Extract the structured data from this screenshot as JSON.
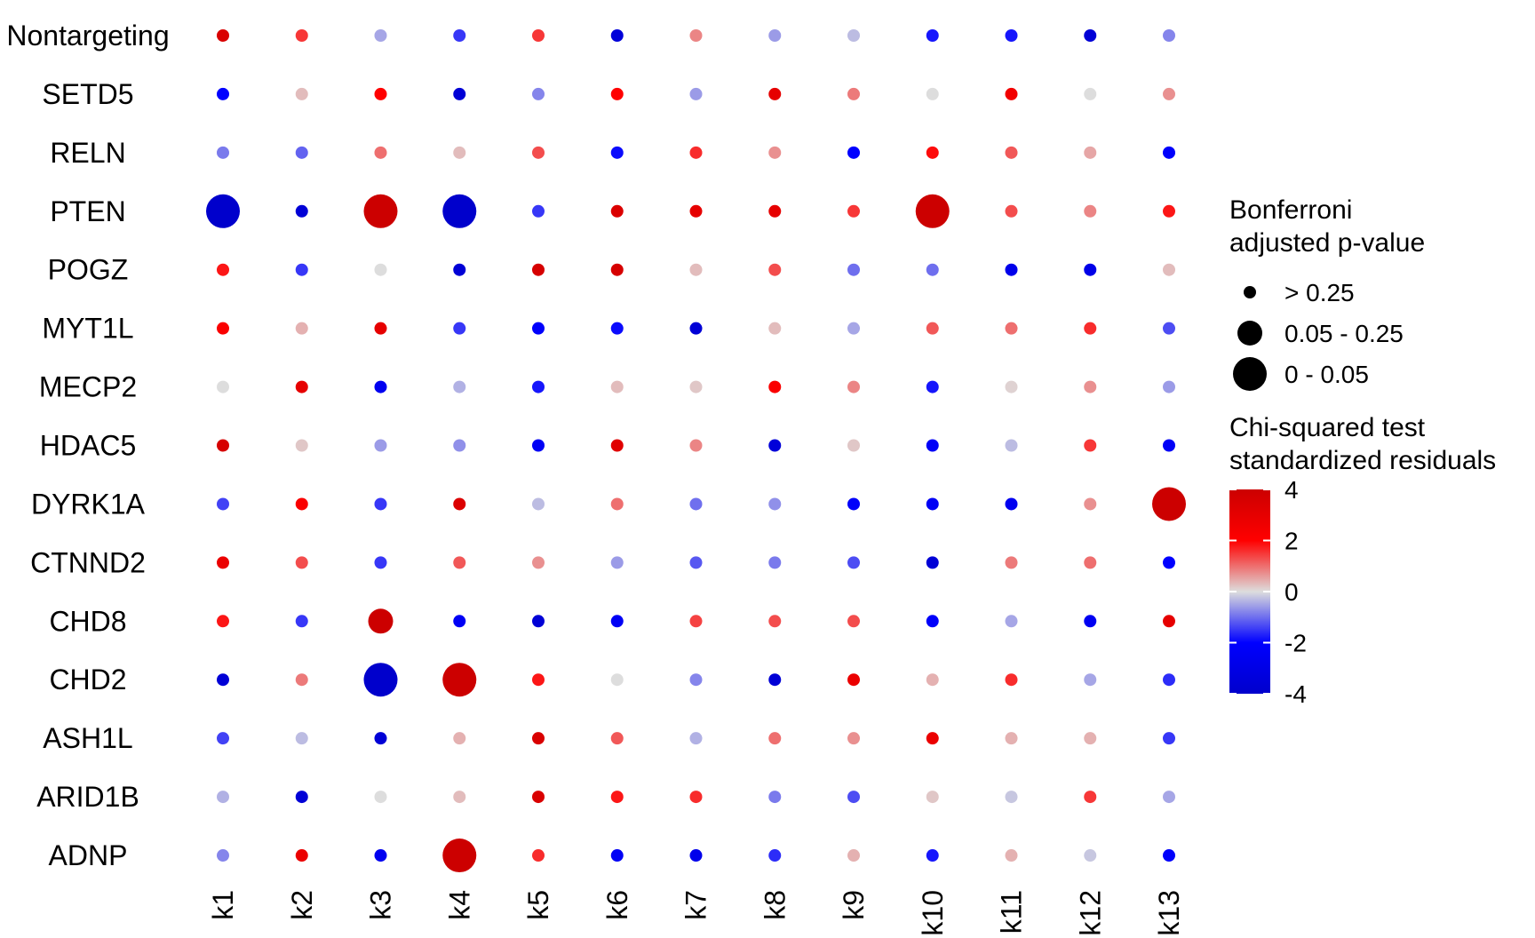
{
  "chart_data": {
    "type": "dotplot",
    "title": "",
    "xlabel": "",
    "ylabel": "",
    "x_categories": [
      "k1",
      "k2",
      "k3",
      "k4",
      "k5",
      "k6",
      "k7",
      "k8",
      "k9",
      "k10",
      "k11",
      "k12",
      "k13"
    ],
    "y_categories": [
      "Nontargeting",
      "SETD5",
      "RELN",
      "PTEN",
      "POGZ",
      "MYT1L",
      "MECP2",
      "HDAC5",
      "DYRK1A",
      "CTNND2",
      "CHD8",
      "CHD2",
      "ASH1L",
      "ARID1B",
      "ADNP"
    ],
    "residuals": [
      [
        3.5,
        1.5,
        -0.5,
        -1.5,
        1.5,
        -3.5,
        0.8,
        -0.6,
        -0.3,
        -1.8,
        -1.8,
        -3.6,
        -0.8
      ],
      [
        -2.0,
        0.3,
        2.0,
        -3.6,
        -0.8,
        2.0,
        -0.6,
        3.0,
        0.9,
        0.0,
        2.5,
        0.0,
        0.7
      ],
      [
        -0.9,
        -1.1,
        1.0,
        0.3,
        1.3,
        -1.9,
        1.6,
        0.7,
        -2.0,
        1.9,
        1.2,
        0.5,
        -2.1
      ],
      [
        -4.0,
        -3.6,
        4.0,
        -4.0,
        -1.5,
        3.4,
        3.0,
        3.0,
        1.5,
        4.0,
        1.3,
        0.8,
        1.8
      ],
      [
        1.8,
        -1.5,
        0.0,
        -3.6,
        3.6,
        3.6,
        0.3,
        1.3,
        -1.0,
        -1.0,
        -2.8,
        -2.9,
        0.3
      ],
      [
        2.2,
        0.4,
        3.0,
        -1.5,
        -2.1,
        -1.9,
        -3.6,
        0.3,
        -0.5,
        1.2,
        1.0,
        1.6,
        -1.3
      ],
      [
        0.0,
        3.0,
        -2.6,
        -0.4,
        -1.8,
        0.3,
        0.2,
        2.2,
        0.8,
        -1.8,
        0.1,
        0.7,
        -0.6
      ],
      [
        3.6,
        0.2,
        -0.6,
        -0.7,
        -2.4,
        3.2,
        0.8,
        -3.5,
        0.2,
        -2.3,
        -0.3,
        1.5,
        -2.3
      ],
      [
        -1.4,
        2.2,
        -1.5,
        3.4,
        -0.3,
        1.0,
        -1.0,
        -0.7,
        -2.2,
        -2.4,
        -2.6,
        0.7,
        4.0
      ],
      [
        2.8,
        1.3,
        -1.5,
        1.2,
        0.7,
        -0.6,
        -1.2,
        -0.9,
        -1.3,
        -3.6,
        0.9,
        1.0,
        -2.0
      ],
      [
        1.8,
        -1.5,
        4.0,
        -2.4,
        -3.6,
        -2.4,
        1.4,
        1.3,
        1.3,
        -2.2,
        -0.5,
        -2.5,
        3.0
      ],
      [
        -3.6,
        0.9,
        -4.0,
        4.0,
        1.8,
        0.0,
        -0.8,
        -3.6,
        2.8,
        0.4,
        1.6,
        -0.5,
        -1.6
      ],
      [
        -1.4,
        -0.3,
        -3.6,
        0.4,
        3.5,
        1.2,
        -0.4,
        1.0,
        0.7,
        2.8,
        0.4,
        0.4,
        -1.5
      ],
      [
        -0.4,
        -3.6,
        0.0,
        0.3,
        3.5,
        1.8,
        1.6,
        -0.9,
        -1.3,
        0.2,
        -0.2,
        1.5,
        -0.5
      ],
      [
        -0.8,
        2.8,
        -2.6,
        4.0,
        1.6,
        -2.4,
        -2.8,
        -1.6,
        0.4,
        -1.8,
        0.4,
        -0.2,
        -2.1
      ]
    ],
    "significant_cells": [
      {
        "row": "PTEN",
        "col": "k1",
        "pvalue_bin": "0 - 0.05"
      },
      {
        "row": "PTEN",
        "col": "k3",
        "pvalue_bin": "0 - 0.05"
      },
      {
        "row": "PTEN",
        "col": "k4",
        "pvalue_bin": "0 - 0.05"
      },
      {
        "row": "PTEN",
        "col": "k10",
        "pvalue_bin": "0 - 0.05"
      },
      {
        "row": "DYRK1A",
        "col": "k13",
        "pvalue_bin": "0 - 0.05"
      },
      {
        "row": "CHD8",
        "col": "k3",
        "pvalue_bin": "0.05 - 0.25"
      },
      {
        "row": "CHD2",
        "col": "k3",
        "pvalue_bin": "0 - 0.05"
      },
      {
        "row": "CHD2",
        "col": "k4",
        "pvalue_bin": "0 - 0.05"
      },
      {
        "row": "ADNP",
        "col": "k4",
        "pvalue_bin": "0 - 0.05"
      }
    ],
    "size_legend": {
      "title_lines": [
        "Bonferroni",
        "adjusted p-value"
      ],
      "entries": [
        "> 0.25",
        "0.05 - 0.25",
        "0 - 0.05"
      ]
    },
    "color_legend": {
      "title_lines": [
        "Chi-squared test",
        "standardized residuals"
      ],
      "range": [
        -4,
        4
      ],
      "ticks": [
        "4",
        "2",
        "0",
        "-2",
        "-4"
      ],
      "color_low": "#0000cc",
      "color_mid_low": "#0000ff",
      "color_mid": "#dddddd",
      "color_mid_high": "#ff0000",
      "color_high": "#cc0000"
    },
    "legend_position": "right",
    "grid": false
  }
}
